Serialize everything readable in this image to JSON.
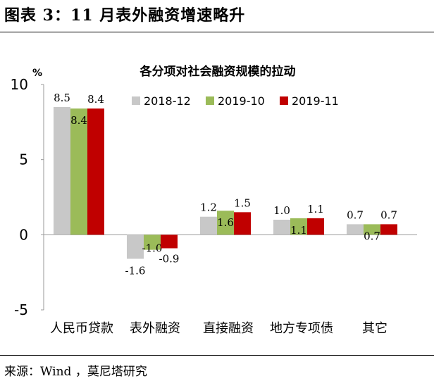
{
  "figure": {
    "title": "图表 3：11 月表外融资增速略升",
    "source": "来源：Wind ，莫尼塔研究"
  },
  "chart_data": {
    "type": "bar",
    "title": "各分项对社会融资规模的拉动",
    "ylabel": "%",
    "ylim": [
      -5,
      10
    ],
    "yticks": [
      -5,
      0,
      5,
      10
    ],
    "legend_position": "top-right",
    "grid": false,
    "categories": [
      "人民币贷款",
      "表外融资",
      "直接融资",
      "地方专项债",
      "其它"
    ],
    "series": [
      {
        "name": "2018-12",
        "color": "#c8c8c8",
        "values": [
          8.5,
          -1.6,
          1.2,
          1.0,
          0.7
        ]
      },
      {
        "name": "2019-10",
        "color": "#9bbb59",
        "values": [
          8.4,
          -1.0,
          1.6,
          1.1,
          0.7
        ]
      },
      {
        "name": "2019-11",
        "color": "#c00000",
        "values": [
          8.4,
          -0.9,
          1.5,
          1.1,
          0.7
        ]
      }
    ],
    "data_labels": [
      [
        "8.5",
        "-1.6",
        "1.2",
        "1.0",
        "0.7"
      ],
      [
        "8.4",
        "-1.0",
        "1.6",
        "1.1",
        "0.7"
      ],
      [
        "8.4",
        "-0.9",
        "1.5",
        "1.1",
        "0.7"
      ]
    ]
  }
}
